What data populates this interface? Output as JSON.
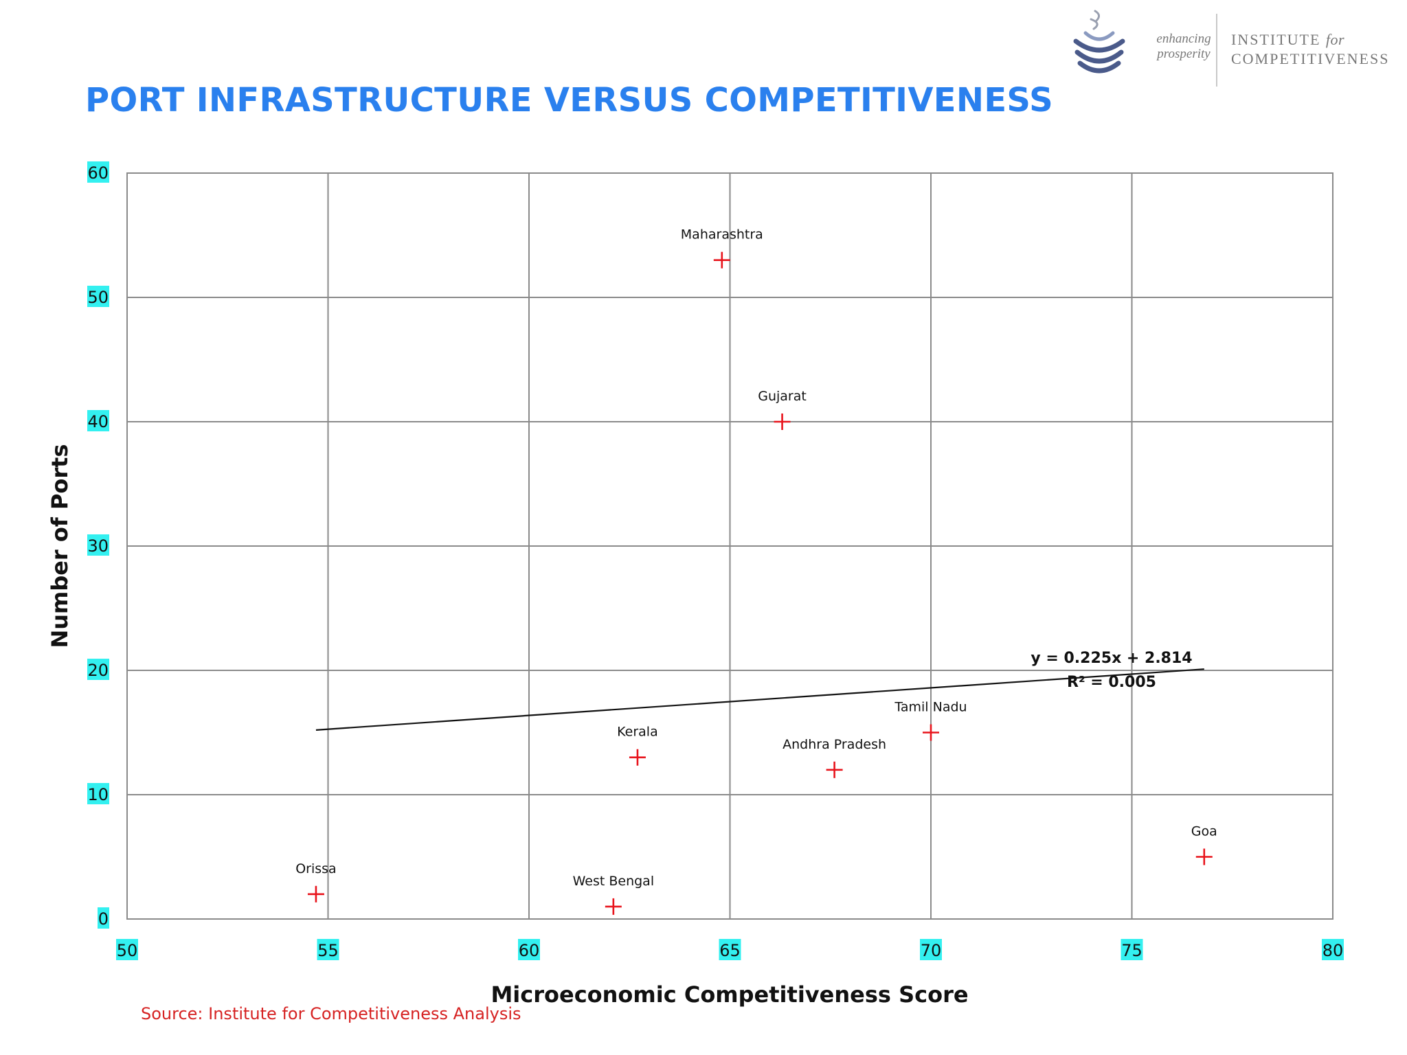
{
  "header": {
    "title": "PORT INFRASTRUCTURE VERSUS COMPETITIVENESS"
  },
  "logo": {
    "tagline_line1": "enhancing",
    "tagline_line2": "prosperity",
    "name_line1": "INSTITUTE",
    "name_line1_for": "for",
    "name_line2": "COMPETITIVENESS",
    "colors": {
      "emblem": "#4a5a8a",
      "text": "#777777"
    }
  },
  "chart_data": {
    "type": "scatter",
    "xlabel": "Microeconomic Competitiveness Score",
    "ylabel": "Number of Ports",
    "xlim": [
      50,
      80
    ],
    "ylim": [
      0,
      60
    ],
    "x_ticks": [
      50,
      55,
      60,
      65,
      70,
      75,
      80
    ],
    "y_ticks": [
      0,
      10,
      20,
      30,
      40,
      50,
      60
    ],
    "grid": true,
    "tick_label_highlight": "#33f0f0",
    "marker": "plus",
    "marker_color": "#e8141c",
    "points": [
      {
        "label": "Maharashtra",
        "x": 64.8,
        "y": 53
      },
      {
        "label": "Gujarat",
        "x": 66.3,
        "y": 40
      },
      {
        "label": "Tamil Nadu",
        "x": 70.0,
        "y": 15
      },
      {
        "label": "Kerala",
        "x": 62.7,
        "y": 13
      },
      {
        "label": "Andhra Pradesh",
        "x": 67.6,
        "y": 12
      },
      {
        "label": "Goa",
        "x": 76.8,
        "y": 5
      },
      {
        "label": "Orissa",
        "x": 54.7,
        "y": 2
      },
      {
        "label": "West Bengal",
        "x": 62.1,
        "y": 1
      }
    ],
    "trendline": {
      "equation": "y = 0.225x + 2.814",
      "r_squared": "R² = 0.005",
      "x_range": [
        54.7,
        76.8
      ],
      "y_values": [
        15.2,
        20.1
      ]
    }
  },
  "footer": {
    "source": "Source: Institute for Competitiveness Analysis"
  }
}
